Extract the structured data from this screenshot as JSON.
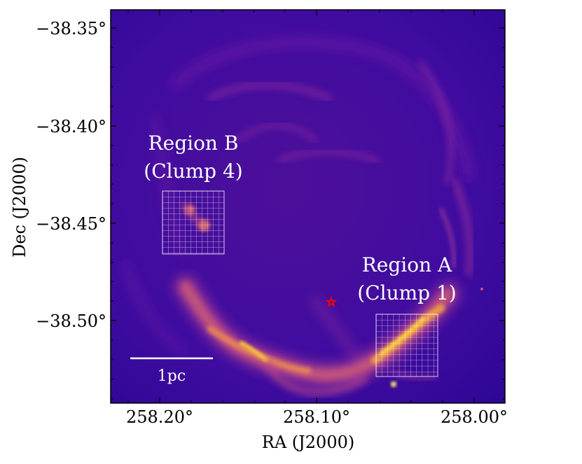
{
  "figure": {
    "xlabel": "RA (J2000)",
    "ylabel": "Dec (J2000)",
    "x_ticks": [
      "258.20°",
      "258.10°",
      "258.00°"
    ],
    "y_ticks": [
      "−38.35°",
      "−38.40°",
      "−38.45°",
      "−38.50°"
    ],
    "regions": [
      {
        "line1": "Region B",
        "line2": "(Clump 4)"
      },
      {
        "line1": "Region A",
        "line2": "(Clump 1)"
      }
    ],
    "scalebar_label": "1pc",
    "colormap": "plasma",
    "star_color": "#ff0000"
  }
}
